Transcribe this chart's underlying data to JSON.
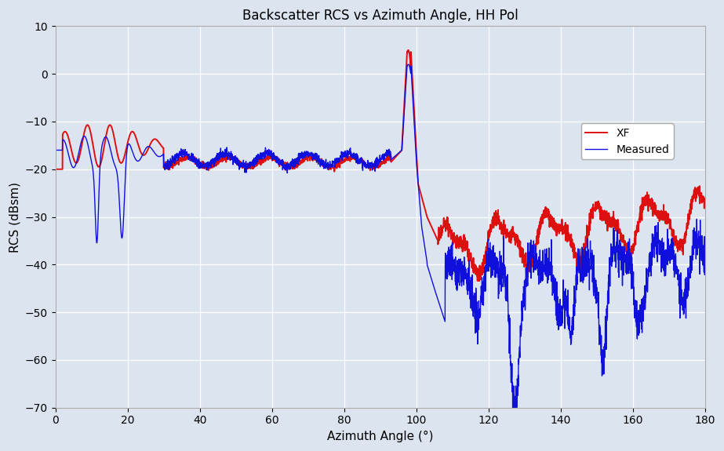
{
  "title": "Backscatter RCS vs Azimuth Angle, HH Pol",
  "xlabel": "Azimuth Angle (°)",
  "ylabel": "RCS (dBsm)",
  "xlim": [
    0,
    180
  ],
  "ylim": [
    -70,
    10
  ],
  "xticks": [
    0,
    20,
    40,
    60,
    80,
    100,
    120,
    140,
    160,
    180
  ],
  "yticks": [
    -70,
    -60,
    -50,
    -40,
    -30,
    -20,
    -10,
    0,
    10
  ],
  "blue_color": "#1010dd",
  "red_color": "#dd1010",
  "background_color": "#dce4f0",
  "plot_background": "#dce4f0",
  "legend_labels": [
    "Measured",
    "XF"
  ],
  "title_fontsize": 12,
  "axis_fontsize": 11,
  "tick_fontsize": 10
}
